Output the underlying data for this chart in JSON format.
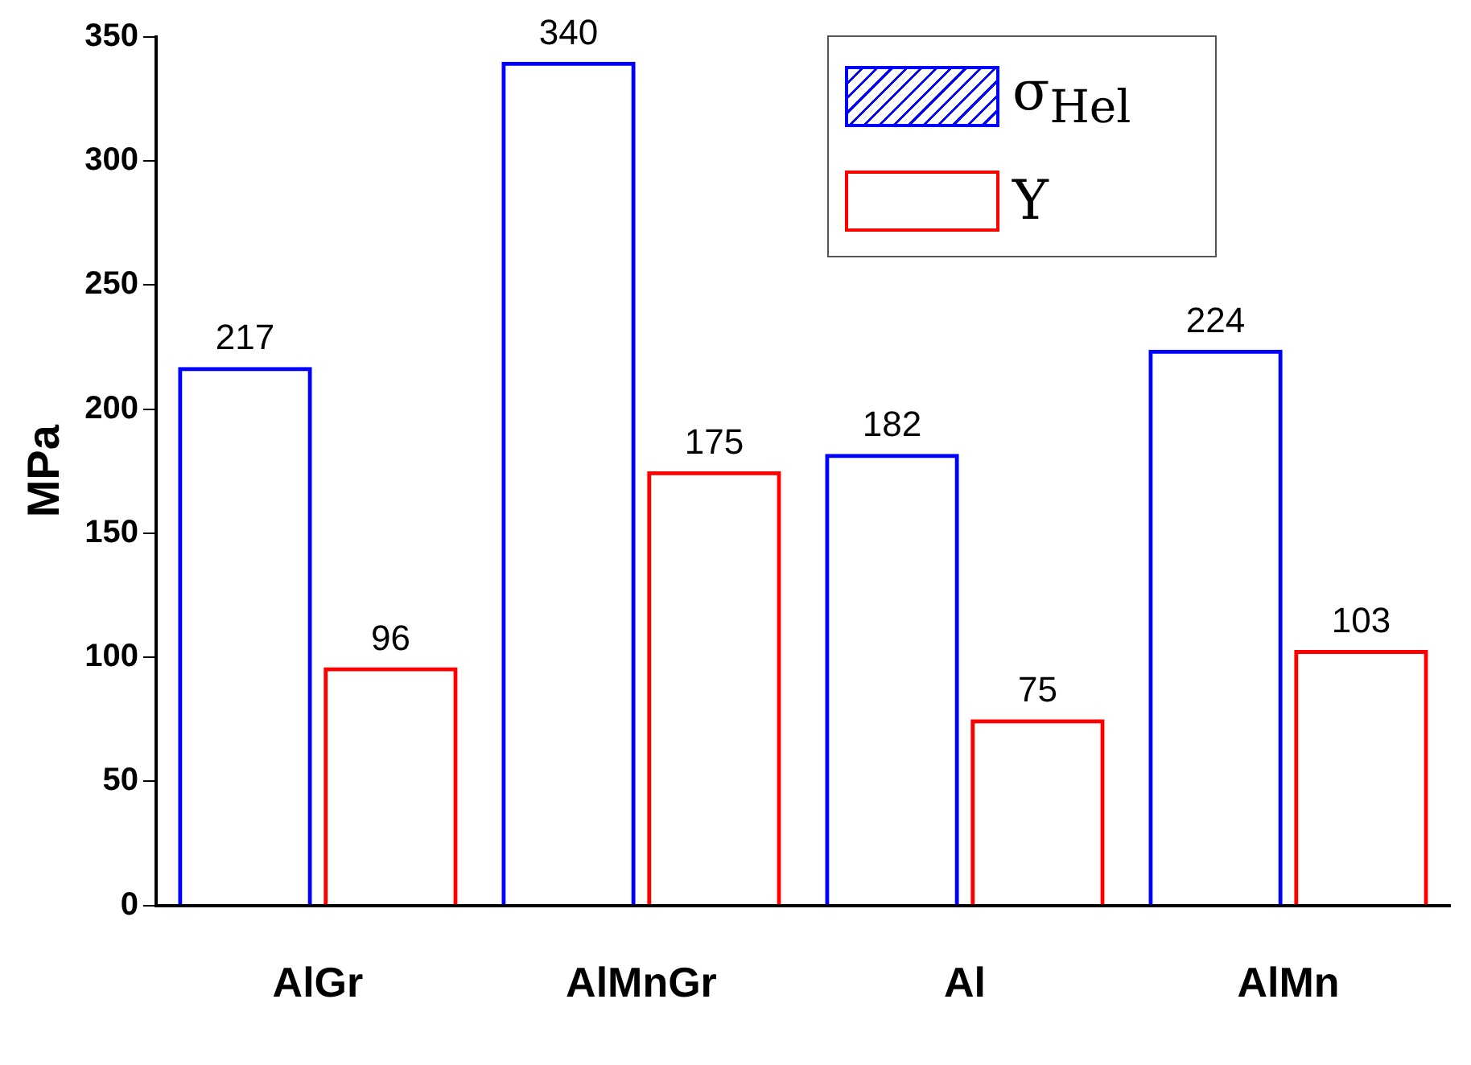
{
  "chart_data": {
    "type": "bar",
    "ylabel": "MPa",
    "categories": [
      "AlGr",
      "AlMnGr",
      "Al",
      "AlMn"
    ],
    "series": [
      {
        "name": "σ$_{Hel}$",
        "color": "#0000ff",
        "values": [
          217,
          340,
          182,
          224
        ]
      },
      {
        "name": "Y",
        "color": "#ff0000",
        "values": [
          96,
          175,
          75,
          103
        ]
      }
    ],
    "ylim": [
      0,
      350
    ],
    "yticks": [
      0,
      50,
      100,
      150,
      200,
      250,
      300,
      350
    ],
    "grid": false,
    "legend": "top right",
    "data_labels": true
  }
}
